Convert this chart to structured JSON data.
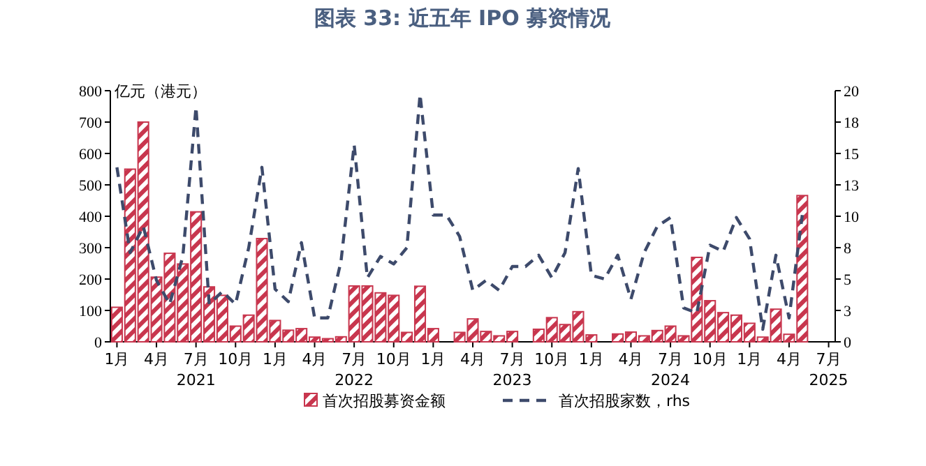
{
  "chart_data": {
    "type": "bar",
    "title": "图表 33: 近五年 IPO 募资情况",
    "ylabel": "亿元（港元）",
    "categories": [
      "1月",
      null,
      null,
      "4月",
      null,
      null,
      "7月\n2021",
      null,
      null,
      "10月",
      null,
      null,
      "1月",
      null,
      null,
      "4月",
      null,
      null,
      "7月\n2022",
      null,
      null,
      "10月",
      null,
      null,
      "1月",
      null,
      null,
      "4月",
      null,
      null,
      "7月\n2023",
      null,
      null,
      "10月",
      null,
      null,
      "1月",
      null,
      null,
      "4月",
      null,
      null,
      "7月\n2024",
      null,
      null,
      "10月",
      null,
      null,
      "1月",
      null,
      null,
      "4月",
      null,
      null,
      "7月\n2025"
    ],
    "series": [
      {
        "name": "首次招股募资金额",
        "color": "#c8364e",
        "values": [
          110,
          550,
          700,
          206,
          282,
          248,
          414,
          175,
          148,
          50,
          85,
          329,
          68,
          37,
          42,
          15,
          10,
          16,
          178,
          178,
          156,
          148,
          30,
          177,
          42,
          0,
          30,
          73,
          33,
          19,
          33,
          0,
          40,
          77,
          55,
          96,
          22,
          0,
          25,
          31,
          19,
          36,
          50,
          19,
          269,
          131,
          93,
          85,
          59,
          15,
          104,
          24,
          466,
          null,
          null
        ]
      },
      {
        "type": "line",
        "name": "首次招股家数，rhs",
        "color": "#3d4a6b",
        "axis": "y2",
        "line_style": "dashed",
        "values": [
          13.9,
          7.1,
          9.2,
          4.9,
          3.0,
          6.8,
          18.7,
          3.0,
          4.0,
          3.0,
          7.5,
          13.9,
          4.2,
          3.2,
          7.9,
          1.9,
          1.9,
          6.4,
          15.7,
          5.1,
          6.8,
          6.2,
          7.5,
          19.7,
          10.1,
          10.1,
          8.4,
          4.1,
          4.9,
          4.1,
          6.0,
          6.0,
          6.9,
          5.1,
          7.1,
          13.8,
          5.3,
          5.0,
          6.9,
          3.4,
          7.1,
          9.2,
          9.9,
          2.7,
          2.3,
          7.7,
          7.2,
          9.9,
          8.2,
          1.0,
          6.9,
          1.9,
          10.1,
          null,
          null
        ]
      }
    ],
    "ylim": [
      0,
      800
    ],
    "yticks": [
      0,
      100,
      200,
      300,
      400,
      500,
      600,
      700,
      800
    ],
    "y2lim": [
      0,
      20
    ],
    "y2ticks": [
      0,
      {
        "value": 2.5,
        "label": "3"
      },
      5,
      {
        "value": 7.5,
        "label": "8"
      },
      10,
      {
        "value": 12.5,
        "label": "13"
      },
      15,
      {
        "value": 17.5,
        "label": "18"
      },
      20
    ],
    "legend": "bottom"
  }
}
